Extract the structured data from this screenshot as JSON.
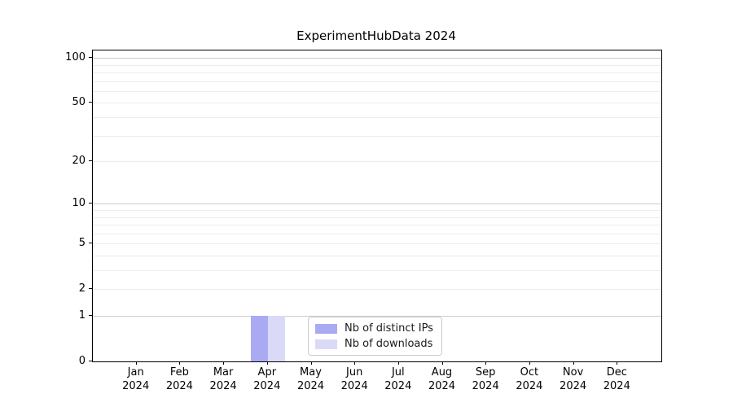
{
  "figure": {
    "title": "ExperimentHubData 2024"
  },
  "chart_data": {
    "type": "bar",
    "title": "ExperimentHubData 2024",
    "categories": [
      "Jan 2024",
      "Feb 2024",
      "Mar 2024",
      "Apr 2024",
      "May 2024",
      "Jun 2024",
      "Jul 2024",
      "Aug 2024",
      "Sep 2024",
      "Oct 2024",
      "Nov 2024",
      "Dec 2024"
    ],
    "category_months": [
      "Jan",
      "Feb",
      "Mar",
      "Apr",
      "May",
      "Jun",
      "Jul",
      "Aug",
      "Sep",
      "Oct",
      "Nov",
      "Dec"
    ],
    "category_year": "2024",
    "series": [
      {
        "name": "Nb of distinct IPs",
        "color": "#aaaaf3",
        "values": [
          0,
          0,
          0,
          1,
          0,
          0,
          0,
          0,
          0,
          0,
          0,
          0
        ]
      },
      {
        "name": "Nb of downloads",
        "color": "#dadaf8",
        "values": [
          0,
          0,
          0,
          1,
          0,
          0,
          0,
          0,
          0,
          0,
          0,
          0
        ]
      }
    ],
    "xlabel": "",
    "ylabel": "",
    "y_scale": "log1p",
    "ylim": [
      0,
      112
    ],
    "y_ticks": [
      0,
      1,
      2,
      5,
      10,
      20,
      50,
      100
    ],
    "y_major_grid": [
      1,
      10,
      100
    ],
    "y_minor_grid": [
      2,
      3,
      4,
      5,
      6,
      7,
      8,
      9,
      20,
      30,
      40,
      50,
      60,
      70,
      80,
      90
    ],
    "grid": "horizontal",
    "legend_position": "lower-center",
    "background_color": "#ffffff",
    "axis_color": "#000000"
  }
}
